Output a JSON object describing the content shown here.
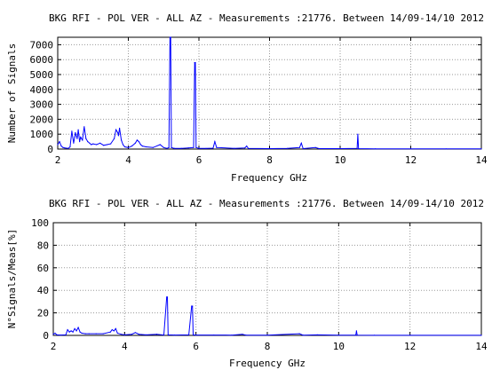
{
  "chart_data": [
    {
      "type": "line",
      "title": "BKG RFI - POL VER - ALL AZ - Measurements :21776. Between 14/09-14/10 2012",
      "xlabel": "Frequency GHz",
      "ylabel": "Number of Signals",
      "xlim": [
        2,
        14
      ],
      "ylim": [
        0,
        7500
      ],
      "xticks": [
        "2",
        "4",
        "6",
        "8",
        "10",
        "12",
        "14"
      ],
      "yticks": [
        "0",
        "1000",
        "2000",
        "3000",
        "4000",
        "5000",
        "6000",
        "7000"
      ],
      "grid": true,
      "color": "#0000ff",
      "series": [
        {
          "x": [
            2.0,
            2.05,
            2.1,
            2.15,
            2.2,
            2.3,
            2.35,
            2.4,
            2.45,
            2.48,
            2.5,
            2.55,
            2.58,
            2.6,
            2.62,
            2.65,
            2.7,
            2.75,
            2.8,
            2.85,
            2.9,
            2.95,
            3.0,
            3.1,
            3.2,
            3.3,
            3.4,
            3.5,
            3.6,
            3.65,
            3.7,
            3.72,
            3.75,
            3.8,
            3.85,
            3.9,
            4.0,
            4.1,
            4.2,
            4.25,
            4.3,
            4.35,
            4.4,
            4.5,
            4.7,
            4.9,
            5.0,
            5.1,
            5.15,
            5.18,
            5.2,
            5.22,
            5.3,
            5.5,
            5.7,
            5.85,
            5.88,
            5.9,
            5.92,
            6.0,
            6.2,
            6.4,
            6.45,
            6.5,
            7.0,
            7.3,
            7.35,
            7.4,
            8.0,
            8.5,
            8.85,
            8.9,
            8.95,
            9.3,
            9.4,
            10.0,
            10.48,
            10.5,
            10.52,
            11.0,
            12.0,
            13.0,
            14.0
          ],
          "y": [
            300,
            500,
            200,
            100,
            80,
            50,
            150,
            1200,
            400,
            800,
            1100,
            700,
            1300,
            900,
            500,
            800,
            600,
            1500,
            700,
            500,
            400,
            300,
            350,
            300,
            400,
            250,
            300,
            350,
            700,
            1300,
            1100,
            900,
            1400,
            600,
            300,
            150,
            100,
            200,
            400,
            600,
            500,
            300,
            200,
            150,
            100,
            300,
            100,
            50,
            100,
            7500,
            7500,
            100,
            50,
            50,
            80,
            100,
            5800,
            5800,
            100,
            50,
            40,
            60,
            500,
            100,
            50,
            80,
            200,
            40,
            30,
            40,
            100,
            400,
            30,
            100,
            30,
            30,
            40,
            1000,
            30,
            20,
            10,
            10,
            10
          ]
        }
      ]
    },
    {
      "type": "line",
      "title": "BKG RFI - POL VER - ALL AZ - Measurements :21776. Between 14/09-14/10 2012",
      "xlabel": "Frequency GHz",
      "ylabel": "N°Signals/Meas[%]",
      "xlim": [
        2,
        14
      ],
      "ylim": [
        0,
        100
      ],
      "xticks": [
        "2",
        "4",
        "6",
        "8",
        "10",
        "12",
        "14"
      ],
      "yticks": [
        "0",
        "20",
        "40",
        "60",
        "80",
        "100"
      ],
      "grid": true,
      "color": "#0000ff",
      "series": [
        {
          "x": [
            2.0,
            2.05,
            2.1,
            2.2,
            2.35,
            2.4,
            2.45,
            2.5,
            2.55,
            2.6,
            2.65,
            2.7,
            2.75,
            2.8,
            2.9,
            3.0,
            3.2,
            3.4,
            3.6,
            3.65,
            3.7,
            3.75,
            3.8,
            3.9,
            4.0,
            4.2,
            4.3,
            4.4,
            4.6,
            4.9,
            5.1,
            5.18,
            5.2,
            5.22,
            5.4,
            5.8,
            5.88,
            5.9,
            5.92,
            6.0,
            6.5,
            7.0,
            7.3,
            7.4,
            8.0,
            8.9,
            9.0,
            9.4,
            10.0,
            10.48,
            10.5,
            10.52,
            11.0,
            12.0,
            14.0
          ],
          "y": [
            1,
            2,
            0.5,
            0.3,
            0.5,
            5,
            3,
            4,
            3,
            6,
            4,
            7,
            3,
            2,
            1.5,
            1.5,
            1.5,
            1.5,
            3,
            5,
            4,
            6,
            2,
            1,
            0.5,
            1,
            2.5,
            1,
            0.5,
            1,
            0.3,
            34,
            34,
            0.5,
            0.3,
            0.5,
            26,
            26,
            0.5,
            0.3,
            0.3,
            0.2,
            1,
            0.2,
            0.2,
            1.5,
            0.2,
            0.5,
            0.2,
            0.2,
            4,
            0.2,
            0.1,
            0.1,
            0.1
          ]
        }
      ]
    }
  ]
}
